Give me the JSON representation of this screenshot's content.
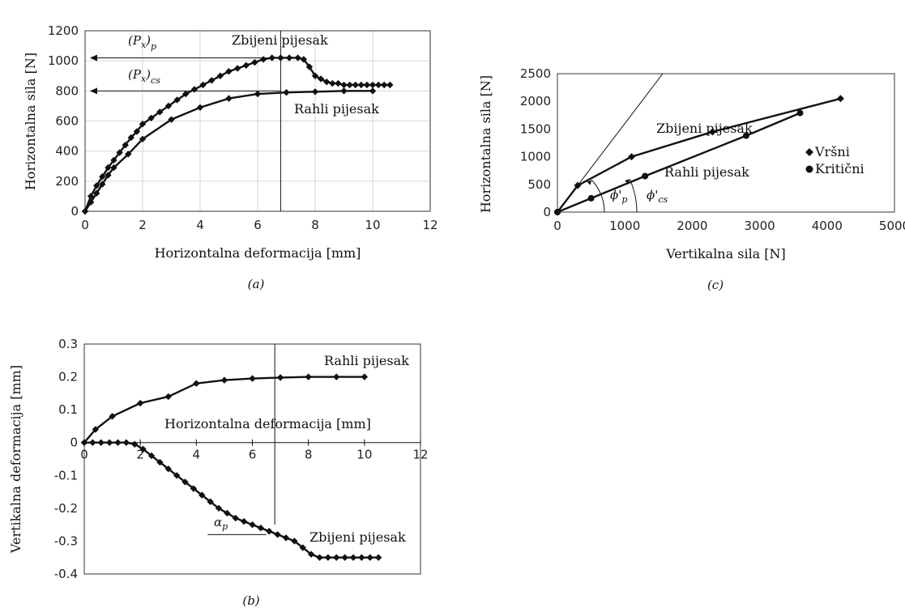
{
  "chart_data": [
    {
      "id": "a",
      "type": "line",
      "caption": "(a)",
      "xlabel": "Horizontalna deformacija [mm]",
      "ylabel": "Horizontalna sila [N]",
      "xlim": [
        0,
        12
      ],
      "ylim": [
        0,
        1200
      ],
      "xticks": [
        "0",
        "2",
        "4",
        "6",
        "8",
        "10",
        "12"
      ],
      "yticks": [
        "0",
        "200",
        "400",
        "600",
        "800",
        "1000",
        "1200"
      ],
      "grid": true,
      "series": [
        {
          "name": "Zbijeni pijesak",
          "marker": "diamond",
          "x": [
            0,
            0.2,
            0.4,
            0.6,
            0.8,
            1.0,
            1.2,
            1.4,
            1.6,
            1.8,
            2.0,
            2.3,
            2.6,
            2.9,
            3.2,
            3.5,
            3.8,
            4.1,
            4.4,
            4.7,
            5.0,
            5.3,
            5.6,
            5.9,
            6.2,
            6.5,
            6.8,
            7.1,
            7.4,
            7.6,
            7.8,
            8.0,
            8.2,
            8.4,
            8.6,
            8.8,
            9.0,
            9.2,
            9.4,
            9.6,
            9.8,
            10.0,
            10.2,
            10.4,
            10.6
          ],
          "y": [
            0,
            100,
            170,
            230,
            290,
            340,
            390,
            440,
            490,
            530,
            580,
            620,
            660,
            700,
            740,
            780,
            810,
            840,
            870,
            900,
            930,
            950,
            970,
            990,
            1010,
            1020,
            1020,
            1020,
            1020,
            1010,
            960,
            900,
            880,
            860,
            850,
            850,
            840,
            840,
            840,
            840,
            840,
            840,
            840,
            840,
            840
          ]
        },
        {
          "name": "Rahli pijesak",
          "marker": "diamond",
          "x": [
            0,
            0.2,
            0.4,
            0.6,
            0.8,
            1.0,
            1.5,
            2.0,
            3.0,
            4.0,
            5.0,
            6.0,
            7.0,
            8.0,
            9.0,
            10.0
          ],
          "y": [
            0,
            60,
            120,
            180,
            240,
            290,
            380,
            480,
            610,
            690,
            750,
            780,
            790,
            795,
            800,
            800
          ]
        }
      ],
      "annotations": {
        "peak_label": "(P",
        "peak_sub_x": "x",
        "peak_sub_p": "p",
        "peak_value": 1020,
        "cs_label": "(P",
        "cs_sub_x": "x",
        "cs_sub_cs": "cs",
        "cs_value": 800,
        "vertical_line_x": 6.8,
        "label_dense": "Zbijeni pijesak",
        "label_loose": "Rahli pijesak"
      }
    },
    {
      "id": "b",
      "type": "line",
      "caption": "(b)",
      "xlabel": "Horizontalna deformacija [mm]",
      "ylabel": "Vertikalna deformacija [mm]",
      "xlim": [
        0,
        12
      ],
      "ylim": [
        -0.4,
        0.3
      ],
      "xticks": [
        "0",
        "2",
        "4",
        "6",
        "8",
        "10",
        "12"
      ],
      "yticks": [
        "0.3",
        "0.2",
        "0.1",
        "0",
        "-0.1",
        "-0.2",
        "-0.3",
        "-0.4"
      ],
      "grid": false,
      "series": [
        {
          "name": "Rahli pijesak",
          "marker": "diamond",
          "x": [
            0,
            0.4,
            1.0,
            2.0,
            3.0,
            4.0,
            5.0,
            6.0,
            7.0,
            8.0,
            9.0,
            10.0
          ],
          "y": [
            0,
            0.04,
            0.08,
            0.12,
            0.14,
            0.18,
            0.19,
            0.195,
            0.198,
            0.2,
            0.2,
            0.2
          ]
        },
        {
          "name": "Zbijeni pijesak",
          "marker": "diamond",
          "x": [
            0,
            0.3,
            0.6,
            0.9,
            1.2,
            1.5,
            1.8,
            2.1,
            2.4,
            2.7,
            3.0,
            3.3,
            3.6,
            3.9,
            4.2,
            4.5,
            4.8,
            5.1,
            5.4,
            5.7,
            6.0,
            6.3,
            6.6,
            6.9,
            7.2,
            7.5,
            7.8,
            8.1,
            8.4,
            8.7,
            9.0,
            9.3,
            9.6,
            9.9,
            10.2,
            10.5
          ],
          "y": [
            0,
            0,
            0,
            0,
            0,
            0,
            -0.005,
            -0.02,
            -0.04,
            -0.06,
            -0.08,
            -0.1,
            -0.12,
            -0.14,
            -0.16,
            -0.18,
            -0.2,
            -0.215,
            -0.23,
            -0.24,
            -0.25,
            -0.26,
            -0.27,
            -0.28,
            -0.29,
            -0.3,
            -0.32,
            -0.34,
            -0.35,
            -0.35,
            -0.35,
            -0.35,
            -0.35,
            -0.35,
            -0.35,
            -0.35
          ]
        }
      ],
      "annotations": {
        "vertical_line_x": 6.8,
        "alpha_label": "α",
        "alpha_sub": "p",
        "label_loose": "Rahli pijesak",
        "label_dense": "Zbijeni pijesak",
        "inner_xlabel": "Horizontalna deformacija [mm]"
      }
    },
    {
      "id": "c",
      "type": "line",
      "caption": "(c)",
      "xlabel": "Vertikalna sila [N]",
      "ylabel": "Horizontalna sila [N]",
      "xlim": [
        0,
        5000
      ],
      "ylim": [
        0,
        2500
      ],
      "xticks": [
        "0",
        "1000",
        "2000",
        "3000",
        "4000",
        "5000"
      ],
      "yticks": [
        "0",
        "500",
        "1000",
        "1500",
        "2000",
        "2500"
      ],
      "grid": false,
      "series": [
        {
          "name": "Zbijeni pijesak",
          "marker": "diamond",
          "x": [
            0,
            300,
            1100,
            2300,
            4200
          ],
          "y": [
            0,
            480,
            1000,
            1450,
            2050
          ]
        },
        {
          "name": "Rahli pijesak",
          "marker": "circle",
          "x": [
            0,
            500,
            1300,
            2800,
            3600
          ],
          "y": [
            0,
            250,
            650,
            1380,
            1790
          ]
        }
      ],
      "annotations": {
        "tangent_line": {
          "x": [
            0,
            2000
          ],
          "y": [
            0,
            3200
          ]
        },
        "phi_p_label": "ϕ'",
        "phi_p_sub": "p",
        "phi_cs_label": "ϕ'",
        "phi_cs_sub": "cs",
        "label_dense": "Zbijeni pijesak",
        "label_loose": "Rahli pijesak",
        "legend": [
          {
            "marker": "diamond",
            "label": "Vršni"
          },
          {
            "marker": "circle",
            "label": "Kritični"
          }
        ],
        "legend_placement": "right"
      }
    }
  ]
}
